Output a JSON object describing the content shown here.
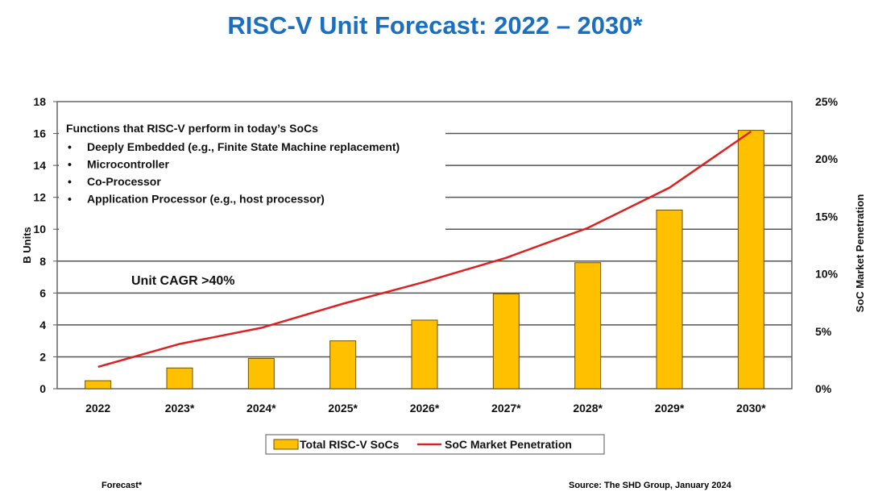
{
  "chart_data": {
    "type": "bar+line",
    "title": "RISC-V Unit Forecast: 2022 – 2030*",
    "categories": [
      "2022",
      "2023*",
      "2024*",
      "2025*",
      "2026*",
      "2027*",
      "2028*",
      "2029*",
      "2030*"
    ],
    "series": [
      {
        "name": "Total RISC-V SoCs",
        "type": "bar",
        "axis": "left",
        "color": "#ffc000",
        "values": [
          0.5,
          1.3,
          1.9,
          3.0,
          4.3,
          5.95,
          7.9,
          11.2,
          16.2
        ]
      },
      {
        "name": "SoC Market Penetration",
        "type": "line",
        "axis": "right",
        "color": "#e02020",
        "values": [
          1.9,
          3.9,
          5.3,
          7.4,
          9.3,
          11.4,
          14.0,
          17.5,
          22.4
        ]
      }
    ],
    "ylabel": "B Units",
    "ylim": [
      0,
      18
    ],
    "yticks": [
      0,
      2,
      4,
      6,
      8,
      10,
      12,
      14,
      16,
      18
    ],
    "y2label": "SoC Market Penetration",
    "y2lim": [
      0,
      25
    ],
    "y2ticks": [
      "0%",
      "5%",
      "10%",
      "15%",
      "20%",
      "25%"
    ],
    "grid": true,
    "legend": "bottom",
    "annotations": {
      "functions_heading": "Functions that RISC-V perform in today’s SoCs",
      "functions": [
        "Deeply Embedded (e.g., Finite State Machine replacement)",
        "Microcontroller",
        "Co-Processor",
        "Application Processor (e.g., host processor)"
      ],
      "cagr": "Unit CAGR >40%"
    }
  },
  "footer": {
    "forecast_note": "Forecast*",
    "source": "Source: The SHD Group, January 2024"
  }
}
